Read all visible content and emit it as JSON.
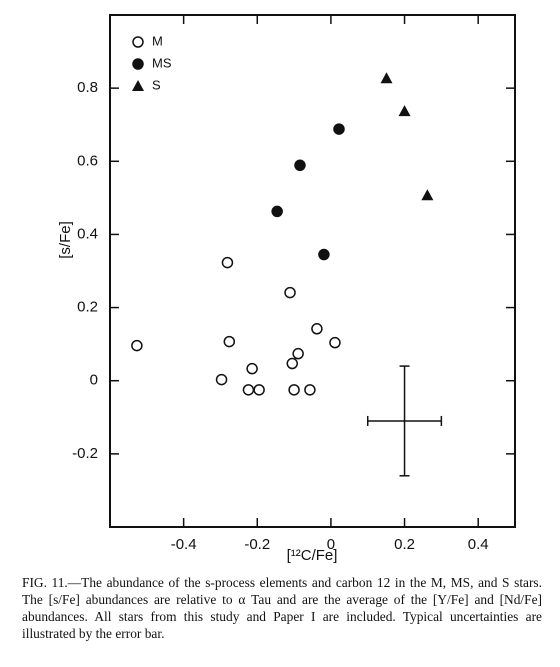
{
  "chart_data": {
    "type": "scatter",
    "xlabel": "[¹²C/Fe]",
    "ylabel": "[s/Fe]",
    "xlim": [
      -0.6,
      0.5
    ],
    "ylim": [
      -0.4,
      1.0
    ],
    "xticks": [
      -0.4,
      -0.2,
      0,
      0.2,
      0.4
    ],
    "yticks": [
      -0.2,
      0,
      0.2,
      0.4,
      0.6,
      0.8
    ],
    "series": [
      {
        "name": "M",
        "marker": "circle-open",
        "color": "#111111",
        "x": [
          -0.527,
          -0.281,
          -0.276,
          -0.297,
          -0.214,
          -0.224,
          -0.195,
          -0.111,
          -0.105,
          -0.089,
          -0.1,
          -0.057,
          -0.038,
          0.011
        ],
        "values": [
          0.096,
          0.323,
          0.107,
          0.003,
          0.033,
          -0.025,
          -0.025,
          0.241,
          0.047,
          0.074,
          -0.025,
          -0.025,
          0.142,
          0.104
        ]
      },
      {
        "name": "MS",
        "marker": "circle-filled",
        "color": "#111111",
        "x": [
          -0.146,
          -0.084,
          0.022,
          -0.019
        ],
        "values": [
          0.463,
          0.589,
          0.688,
          0.345
        ]
      },
      {
        "name": "S",
        "marker": "triangle-filled",
        "color": "#111111",
        "x": [
          0.151,
          0.2,
          0.262
        ],
        "values": [
          0.827,
          0.737,
          0.507
        ]
      }
    ],
    "error_bar": {
      "x": 0.2,
      "y": -0.11,
      "xerr": 0.1,
      "yerr": 0.15
    },
    "caption": "FIG. 11.—The abundance of the s-process elements and carbon 12 in the M, MS, and S stars. The [s/Fe] abundances are relative to α Tau and are the average of the [Y/Fe] and [Nd/Fe] abundances. All stars from this study and Paper I are included. Typical uncertainties are illustrated by the error bar."
  }
}
